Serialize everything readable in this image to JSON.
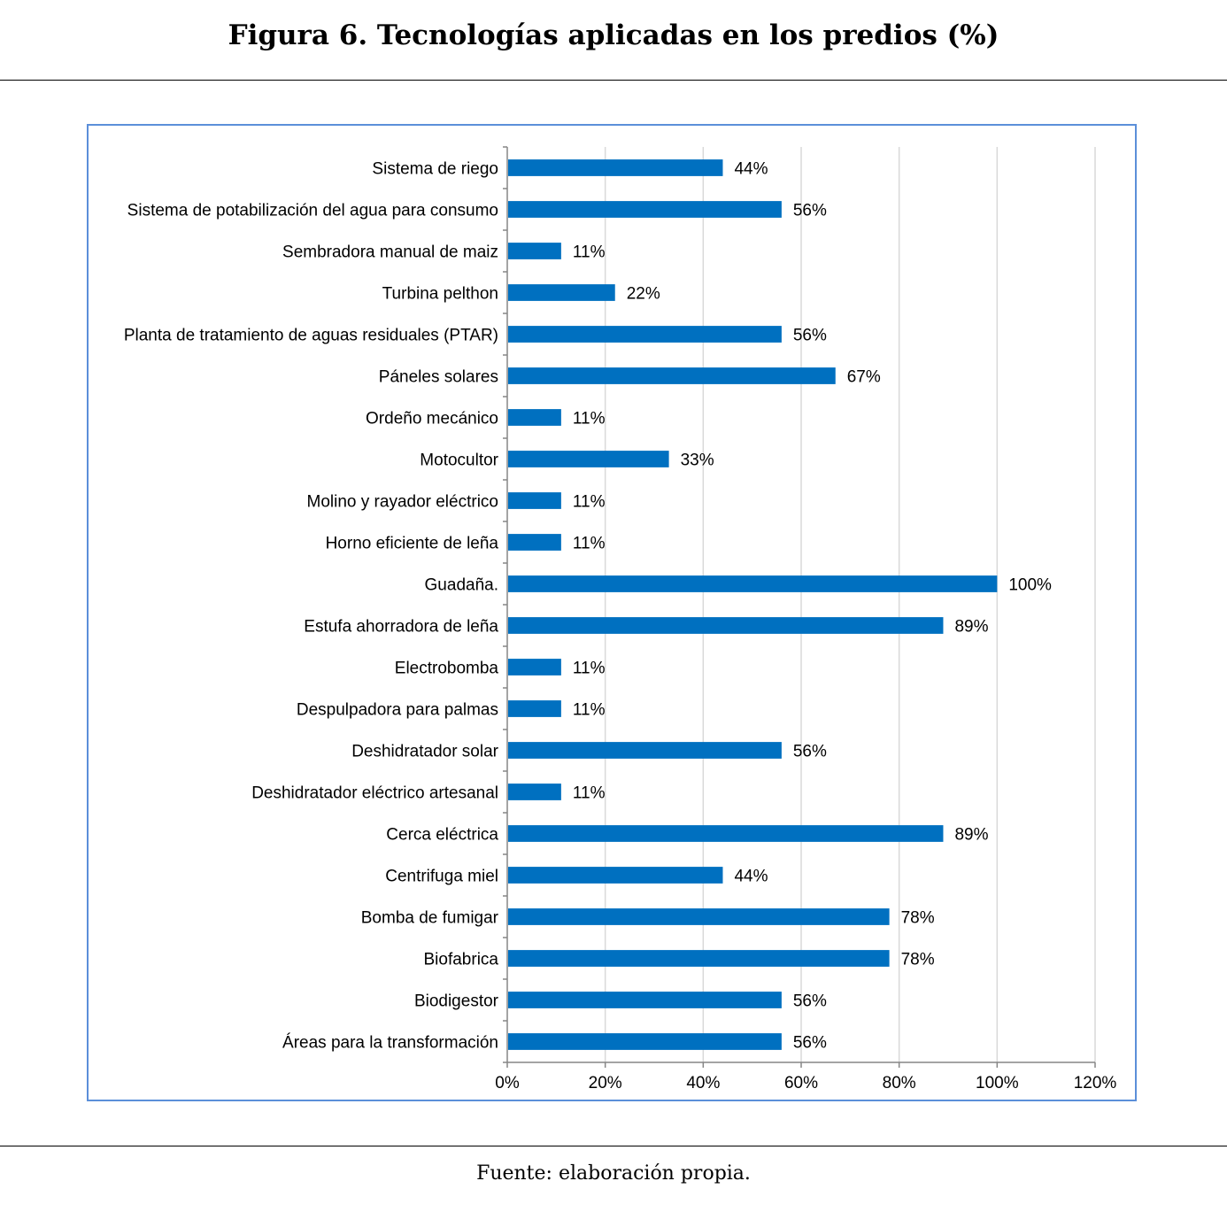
{
  "figure": {
    "title": "Figura 6. Tecnologías aplicadas en los predios (%)",
    "source": "Fuente: elaboración propia."
  },
  "colors": {
    "bar": "#0070c0",
    "grid": "#d9d9d9",
    "axis": "#868686",
    "frame": "#5b8fd9",
    "text": "#000000"
  },
  "chart_data": {
    "type": "bar",
    "orientation": "horizontal",
    "title": "Figura 6. Tecnologías aplicadas en los predios (%)",
    "xlabel": "",
    "ylabel": "",
    "xlim": [
      0,
      120
    ],
    "xticks": [
      0,
      20,
      40,
      60,
      80,
      100,
      120
    ],
    "xtick_labels": [
      "0%",
      "20%",
      "40%",
      "60%",
      "80%",
      "100%",
      "120%"
    ],
    "grid": true,
    "legend": "none",
    "categories": [
      "Sistema de riego",
      "Sistema de potabilización del agua para consumo",
      "Sembradora manual de maiz",
      "Turbina pelthon",
      "Planta de tratamiento de aguas residuales (PTAR)",
      "Páneles solares",
      "Ordeño mecánico",
      "Motocultor",
      "Molino y rayador eléctrico",
      "Horno eficiente de leña",
      "Guadaña.",
      "Estufa ahorradora de leña",
      "Electrobomba",
      "Despulpadora para palmas",
      "Deshidratador solar",
      "Deshidratador eléctrico artesanal",
      "Cerca eléctrica",
      "Centrifuga miel",
      "Bomba de fumigar",
      "Biofabrica",
      "Biodigestor",
      "Áreas para la transformación"
    ],
    "values": [
      44,
      56,
      11,
      22,
      56,
      67,
      11,
      33,
      11,
      11,
      100,
      89,
      11,
      11,
      56,
      11,
      89,
      44,
      78,
      78,
      56,
      56
    ],
    "value_labels": [
      "44%",
      "56%",
      "11%",
      "22%",
      "56%",
      "67%",
      "11%",
      "33%",
      "11%",
      "11%",
      "100%",
      "89%",
      "11%",
      "11%",
      "56%",
      "11%",
      "89%",
      "44%",
      "78%",
      "78%",
      "56%",
      "56%"
    ]
  }
}
